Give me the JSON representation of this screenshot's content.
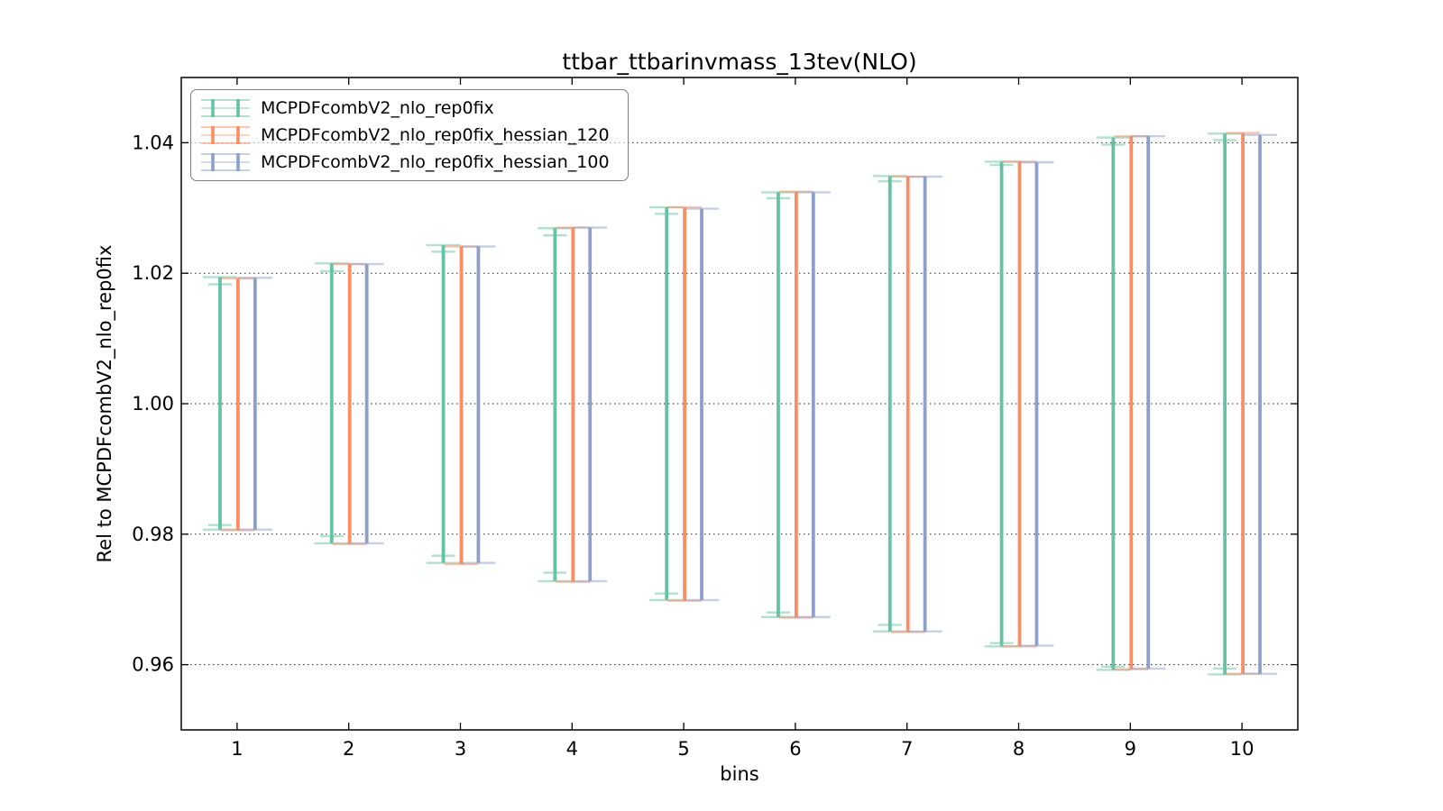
{
  "figure": {
    "background": "#ffffff",
    "spine_color": "#000000",
    "grid_color": "#000000"
  },
  "chart_data": {
    "type": "errorbar",
    "title": "ttbar_ttbarinvmass_13tev(NLO)",
    "xlabel": "bins",
    "ylabel": "Rel to MCPDFcombV2_nlo_rep0fix",
    "xlim": [
      0.5,
      10.5
    ],
    "ylim": [
      0.95,
      1.05
    ],
    "xticks": [
      1,
      2,
      3,
      4,
      5,
      6,
      7,
      8,
      9,
      10
    ],
    "yticks": [
      0.96,
      0.98,
      1.0,
      1.02,
      1.04
    ],
    "ytick_labels": [
      "0.96",
      "0.98",
      "1.00",
      "1.02",
      "1.04"
    ],
    "grid": "horizontal-dotted",
    "legend_position": "upper-left",
    "categories": [
      1,
      2,
      3,
      4,
      5,
      6,
      7,
      8,
      9,
      10
    ],
    "series": [
      {
        "name": "MCPDFcombV2_nlo_rep0fix",
        "color": "#66c2a5",
        "offset_bins": -0.153,
        "ymax": [
          1.0194,
          1.0215,
          1.0243,
          1.0269,
          1.0301,
          1.0324,
          1.0349,
          1.0371,
          1.0408,
          1.0414
        ],
        "ymin": [
          0.9807,
          0.9786,
          0.9756,
          0.9728,
          0.9699,
          0.9673,
          0.9651,
          0.9628,
          0.9592,
          0.9585
        ],
        "inner_ymax": [
          1.0183,
          1.0203,
          1.0233,
          1.0258,
          1.0291,
          1.0315,
          1.0341,
          1.0366,
          1.0397,
          1.0404
        ],
        "inner_ymin": [
          0.9814,
          0.9797,
          0.9767,
          0.9741,
          0.9709,
          0.968,
          0.9661,
          0.9633,
          0.9597,
          0.9594
        ]
      },
      {
        "name": "MCPDFcombV2_nlo_rep0fix_hessian_120",
        "color": "#fc8d62",
        "offset_bins": 0.008,
        "ymax": [
          1.0192,
          1.0214,
          1.0241,
          1.027,
          1.0301,
          1.0325,
          1.0348,
          1.0371,
          1.041,
          1.0415
        ],
        "ymin": [
          0.9806,
          0.9785,
          0.9754,
          0.9727,
          0.9698,
          0.9672,
          0.965,
          0.9628,
          0.9593,
          0.9586
        ]
      },
      {
        "name": "MCPDFcombV2_nlo_rep0fix_hessian_100",
        "color": "#8da0cb",
        "offset_bins": 0.161,
        "ymax": [
          1.0193,
          1.0214,
          1.0241,
          1.027,
          1.0299,
          1.0324,
          1.0348,
          1.037,
          1.041,
          1.0412
        ],
        "ymin": [
          0.9807,
          0.9786,
          0.9756,
          0.9728,
          0.9699,
          0.9673,
          0.9651,
          0.9629,
          0.9594,
          0.9586
        ]
      }
    ]
  }
}
